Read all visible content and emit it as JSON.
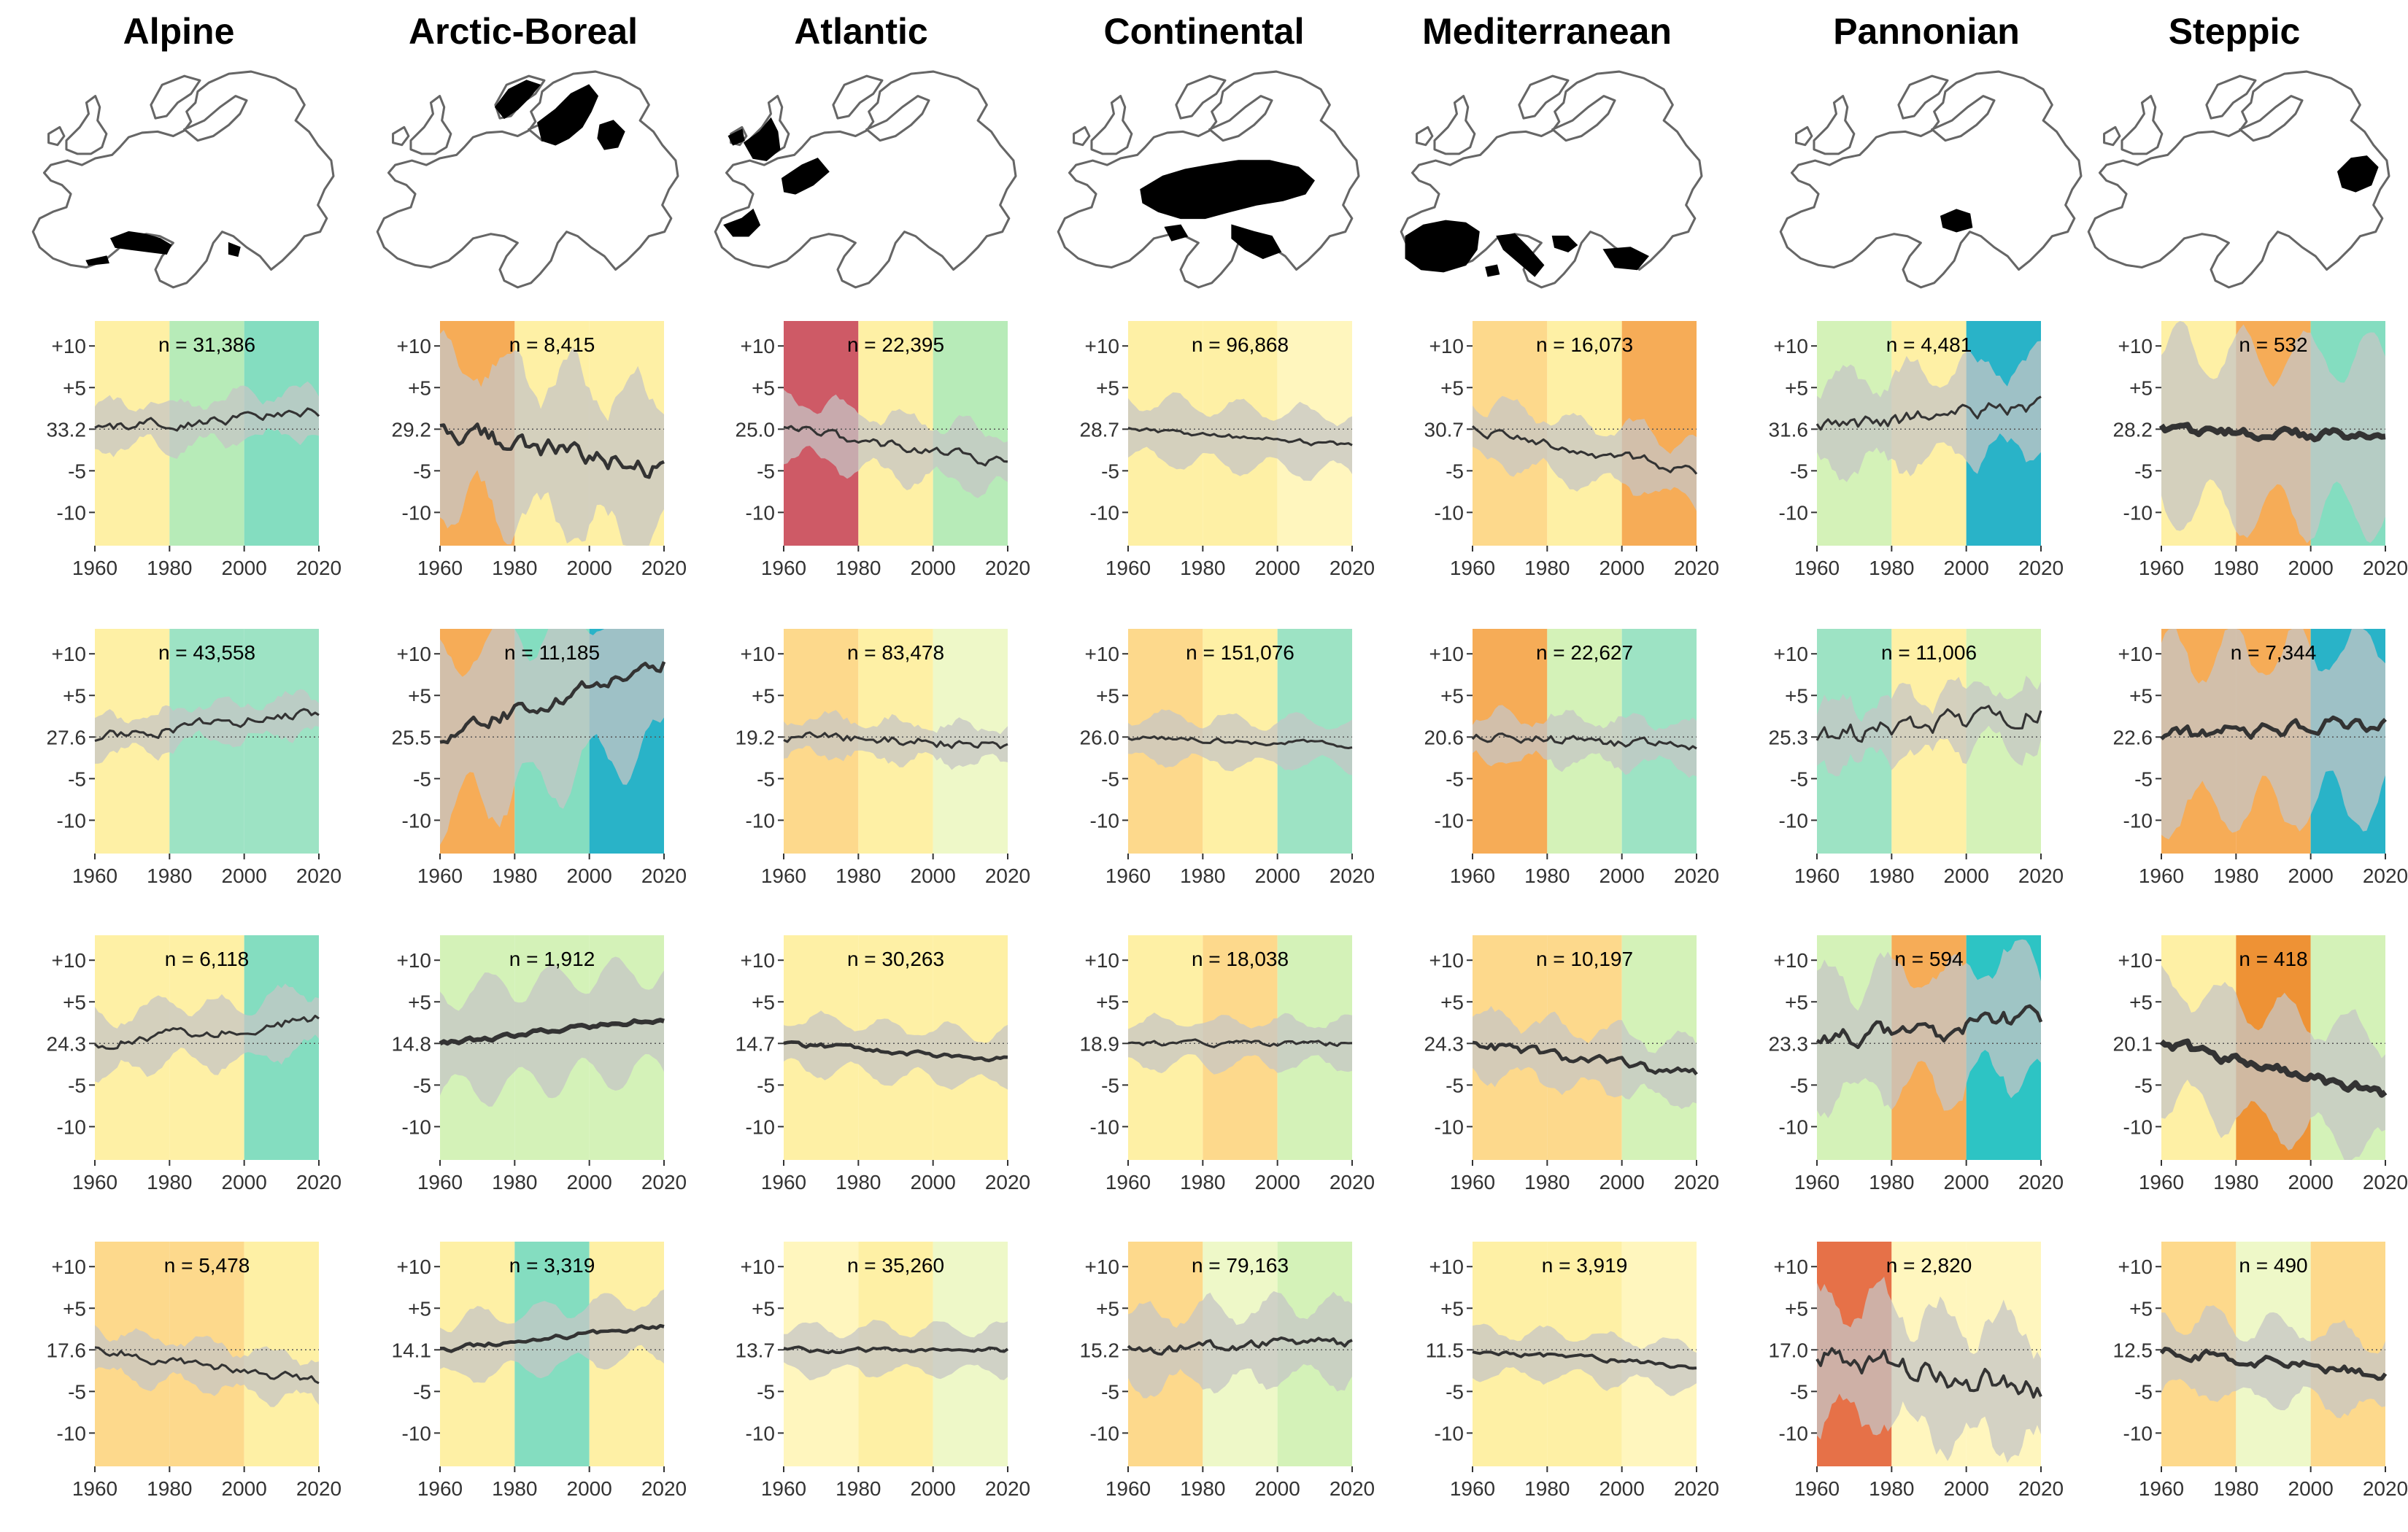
{
  "columns": [
    "Alpine",
    "Arctic-Boreal",
    "Atlantic",
    "Continental",
    "Mediterranean",
    "Pannonian",
    "Steppic"
  ],
  "icons": [
    "europe-map-icon"
  ],
  "colors": {
    "c_yellow_light": "#FFF6BE",
    "c_yellow": "#FEF0A5",
    "c_lime_light": "#EEF8C8",
    "c_lime": "#D4F2B8",
    "c_green": "#B7EBB8",
    "c_teal_light": "#9DE3C4",
    "c_teal": "#84DDC0",
    "c_cyan": "#29B3C8",
    "c_cyan2": "#2DC4C4",
    "c_orange_light": "#FDD98C",
    "c_orange": "#F6AC57",
    "c_orange_dark": "#EE9235",
    "c_red_orange": "#E67148",
    "c_red": "#CE5A66",
    "ribbon": "#C5C5C5",
    "line": "#333333"
  },
  "chart_data": {
    "type": "line",
    "x_ticks": [
      "1960",
      "1980",
      "2000",
      "2020"
    ],
    "xlim": [
      1960,
      2020
    ],
    "y_tick_labels": [
      "+10",
      "+5",
      "-5",
      "-10"
    ],
    "y_tick_offsets": [
      10,
      5,
      -5,
      -10
    ],
    "ylim_offset": [
      -14,
      13
    ],
    "panels": [
      [
        {
          "n_label": "n = 31,386",
          "baseline": "33.2",
          "bands": [
            "c_yellow",
            "c_green",
            "c_teal"
          ],
          "start": 0,
          "trend": 2,
          "ribbon": 3,
          "width": 1,
          "wig": 1
        },
        {
          "n_label": "n = 43,558",
          "baseline": "27.6",
          "bands": [
            "c_yellow",
            "c_teal_light",
            "c_teal_light"
          ],
          "start": 0,
          "trend": 3,
          "ribbon": 2.5,
          "width": 1,
          "wig": 1
        },
        {
          "n_label": "n = 6,118",
          "baseline": "24.3",
          "bands": [
            "c_yellow",
            "c_yellow",
            "c_teal"
          ],
          "start": 0,
          "trend": 3,
          "ribbon": 4,
          "width": 1,
          "wig": 1
        },
        {
          "n_label": "n = 5,478",
          "baseline": "17.6",
          "bands": [
            "c_orange_light",
            "c_orange_light",
            "c_yellow"
          ],
          "start": 0,
          "trend": -4,
          "ribbon": 3,
          "width": 1,
          "wig": 1
        }
      ],
      [
        {
          "n_label": "n = 8,415",
          "baseline": "29.2",
          "bands": [
            "c_orange",
            "c_yellow",
            "c_yellow"
          ],
          "start": 0,
          "trend": -5,
          "ribbon": 10,
          "width": 2,
          "wig": 2
        },
        {
          "n_label": "n = 11,185",
          "baseline": "25.5",
          "bands": [
            "c_orange",
            "c_teal",
            "c_cyan"
          ],
          "start": 0,
          "trend": 9,
          "ribbon": 11,
          "width": 2,
          "wig": 1.5
        },
        {
          "n_label": "n = 1,912",
          "baseline": "14.8",
          "bands": [
            "c_lime",
            "c_lime",
            "c_lime"
          ],
          "start": 0,
          "trend": 3,
          "ribbon": 7,
          "width": 3,
          "wig": 0.5
        },
        {
          "n_label": "n = 3,319",
          "baseline": "14.1",
          "bands": [
            "c_yellow",
            "c_teal",
            "c_yellow"
          ],
          "start": 0,
          "trend": 3,
          "ribbon": 4,
          "width": 2,
          "wig": 0.5
        }
      ],
      [
        {
          "n_label": "n = 22,395",
          "baseline": "25.0",
          "bands": [
            "c_red",
            "c_yellow",
            "c_green"
          ],
          "start": 0,
          "trend": -4,
          "ribbon": 4,
          "width": 1,
          "wig": 1
        },
        {
          "n_label": "n = 83,478",
          "baseline": "19.2",
          "bands": [
            "c_orange_light",
            "c_yellow",
            "c_lime_light"
          ],
          "start": 0,
          "trend": -1,
          "ribbon": 2.5,
          "width": 1,
          "wig": 1
        },
        {
          "n_label": "n = 30,263",
          "baseline": "14.7",
          "bands": [
            "c_yellow",
            "c_yellow",
            "c_yellow"
          ],
          "start": 0,
          "trend": -2,
          "ribbon": 3.5,
          "width": 2,
          "wig": 0.5
        },
        {
          "n_label": "n = 35,260",
          "baseline": "13.7",
          "bands": [
            "c_yellow_light",
            "c_yellow",
            "c_lime_light"
          ],
          "start": 0,
          "trend": 0,
          "ribbon": 3,
          "width": 1.5,
          "wig": 0.5
        }
      ],
      [
        {
          "n_label": "n = 96,868",
          "baseline": "28.7",
          "bands": [
            "c_yellow",
            "c_yellow",
            "c_yellow_light"
          ],
          "start": 0,
          "trend": -2,
          "ribbon": 4,
          "width": 1,
          "wig": 0.5
        },
        {
          "n_label": "n = 151,076",
          "baseline": "26.0",
          "bands": [
            "c_orange_light",
            "c_yellow",
            "c_teal_light"
          ],
          "start": 0,
          "trend": -1,
          "ribbon": 3,
          "width": 1,
          "wig": 0.5
        },
        {
          "n_label": "n = 18,038",
          "baseline": "18.9",
          "bands": [
            "c_yellow",
            "c_orange_light",
            "c_lime"
          ],
          "start": 0,
          "trend": 0,
          "ribbon": 3,
          "width": 1,
          "wig": 0.5
        },
        {
          "n_label": "n = 79,163",
          "baseline": "15.2",
          "bands": [
            "c_orange_light",
            "c_lime_light",
            "c_lime"
          ],
          "start": 0,
          "trend": 1,
          "ribbon": 5,
          "width": 1.5,
          "wig": 1
        }
      ],
      [
        {
          "n_label": "n = 16,073",
          "baseline": "30.7",
          "bands": [
            "c_orange_light",
            "c_yellow",
            "c_orange"
          ],
          "start": 0,
          "trend": -5,
          "ribbon": 4,
          "width": 1,
          "wig": 1
        },
        {
          "n_label": "n = 22,627",
          "baseline": "20.6",
          "bands": [
            "c_orange",
            "c_lime",
            "c_teal_light"
          ],
          "start": 0,
          "trend": -1,
          "ribbon": 3,
          "width": 1,
          "wig": 1
        },
        {
          "n_label": "n = 10,197",
          "baseline": "24.3",
          "bands": [
            "c_orange_light",
            "c_orange_light",
            "c_lime"
          ],
          "start": 0,
          "trend": -4,
          "ribbon": 4,
          "width": 2,
          "wig": 1
        },
        {
          "n_label": "n = 3,919",
          "baseline": "11.5",
          "bands": [
            "c_yellow",
            "c_yellow",
            "c_yellow_light"
          ],
          "start": 0,
          "trend": -2,
          "ribbon": 3,
          "width": 1.5,
          "wig": 0.5
        }
      ],
      [
        {
          "n_label": "n = 4,481",
          "baseline": "31.6",
          "bands": [
            "c_lime",
            "c_yellow",
            "c_cyan"
          ],
          "start": 0,
          "trend": 3,
          "ribbon": 6,
          "width": 1,
          "wig": 1.5
        },
        {
          "n_label": "n = 11,006",
          "baseline": "25.3",
          "bands": [
            "c_teal_light",
            "c_yellow",
            "c_lime"
          ],
          "start": 0,
          "trend": 3,
          "ribbon": 4,
          "width": 1,
          "wig": 2
        },
        {
          "n_label": "n = 594",
          "baseline": "23.3",
          "bands": [
            "c_lime",
            "c_orange",
            "c_cyan2"
          ],
          "start": 0,
          "trend": 3,
          "ribbon": 8,
          "width": 2,
          "wig": 2
        },
        {
          "n_label": "n = 2,820",
          "baseline": "17.0",
          "bands": [
            "c_red_orange",
            "c_yellow_light",
            "c_yellow_light"
          ],
          "start": 0,
          "trend": -5,
          "ribbon": 8,
          "width": 1.5,
          "wig": 2.5
        }
      ],
      [
        {
          "n_label": "n = 532",
          "baseline": "28.2",
          "bands": [
            "c_yellow",
            "c_orange",
            "c_teal"
          ],
          "start": 0,
          "trend": -1,
          "ribbon": 11,
          "width": 4,
          "wig": 1
        },
        {
          "n_label": "n = 7,344",
          "baseline": "22.6",
          "bands": [
            "c_orange",
            "c_orange",
            "c_cyan"
          ],
          "start": 0,
          "trend": 2,
          "ribbon": 11,
          "width": 2.5,
          "wig": 1.5
        },
        {
          "n_label": "n = 418",
          "baseline": "20.1",
          "bands": [
            "c_yellow",
            "c_orange_dark",
            "c_lime"
          ],
          "start": 0,
          "trend": -6,
          "ribbon": 8,
          "width": 4,
          "wig": 1
        },
        {
          "n_label": "n = 490",
          "baseline": "12.5",
          "bands": [
            "c_orange_light",
            "c_lime_light",
            "c_orange_light"
          ],
          "start": 0,
          "trend": -3,
          "ribbon": 5,
          "width": 2.5,
          "wig": 1
        }
      ]
    ]
  }
}
